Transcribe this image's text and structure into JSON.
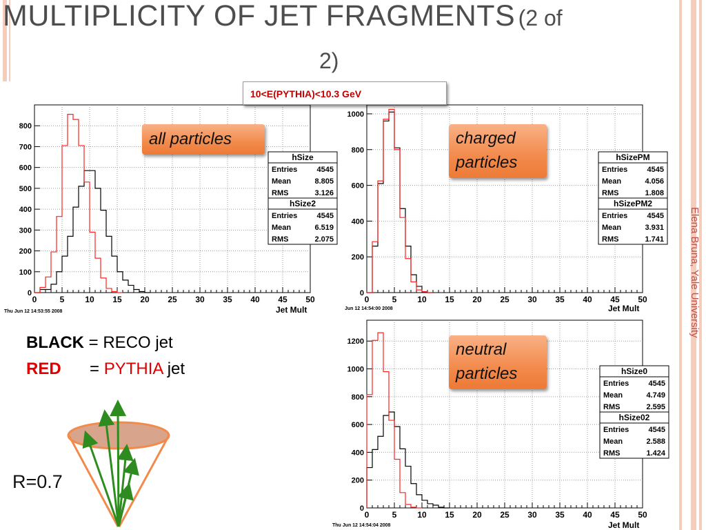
{
  "title": {
    "main": "MULTIPLICITY OF JET FRAGMENTS",
    "part_a": "(2 of",
    "part_b": "2)"
  },
  "side_credit": "Elena Bruna, Yale University",
  "banner": "10<E(PYTHIA)<10.3 GeV",
  "callouts": {
    "all": "all particles",
    "charged_1": "charged",
    "charged_2": "particles",
    "neutral_1": "neutral",
    "neutral_2": "particles"
  },
  "legend": {
    "black_word": "BLACK",
    "black_rest": " = RECO jet",
    "red_word": "RED",
    "red_eq": "= ",
    "red_pythia": "PYTHIA",
    "red_jet": " jet"
  },
  "radius": "R=0.7",
  "colors": {
    "reco": "#000000",
    "pythia": "#ff0000",
    "accent": "#f28a4c",
    "cone_arrows": "#2e8b1f"
  },
  "chart_data": [
    {
      "type": "histogram",
      "id": "all",
      "xlabel": "Jet Mult",
      "timestamp": "Thu Jun 12 14:53:55 2008",
      "xlim": [
        0,
        50
      ],
      "ylim": [
        0,
        900
      ],
      "xticks": [
        "0",
        "5",
        "10",
        "15",
        "20",
        "25",
        "30",
        "35",
        "40",
        "45",
        "50"
      ],
      "yticks": [
        {
          "v": 0,
          "t": "0"
        },
        {
          "v": 100,
          "t": "100"
        },
        {
          "v": 200,
          "t": "200"
        },
        {
          "v": 300,
          "t": "300"
        },
        {
          "v": 400,
          "t": "400"
        },
        {
          "v": 500,
          "t": "500"
        },
        {
          "v": 600,
          "t": "600"
        },
        {
          "v": 700,
          "t": "700"
        },
        {
          "v": 800,
          "t": "800"
        }
      ],
      "grid": true,
      "bin_width": 1,
      "series": [
        {
          "color": "black",
          "values": [
            0,
            15,
            15,
            40,
            100,
            175,
            270,
            410,
            510,
            585,
            585,
            500,
            395,
            270,
            175,
            100,
            60,
            35,
            15,
            5,
            0
          ]
        },
        {
          "color": "red",
          "values": [
            0,
            25,
            75,
            195,
            365,
            705,
            855,
            830,
            705,
            530,
            290,
            165,
            70,
            20,
            5,
            0
          ]
        }
      ],
      "stats": [
        {
          "name": "hSize",
          "rows": [
            [
              "Entries",
              "4545"
            ],
            [
              "Mean",
              "8.805"
            ],
            [
              "RMS",
              "3.126"
            ]
          ]
        },
        {
          "name": "hSize2",
          "rows": [
            [
              "Entries",
              "4545"
            ],
            [
              "Mean",
              "6.519"
            ],
            [
              "RMS",
              "2.075"
            ]
          ]
        }
      ]
    },
    {
      "type": "histogram",
      "id": "charged",
      "xlabel": "Jet Mult",
      "timestamp": "Jun 12 14:54:00 2008",
      "xlim": [
        0,
        50
      ],
      "ylim": [
        0,
        1050
      ],
      "xticks": [
        "0",
        "5",
        "10",
        "15",
        "20",
        "25",
        "30",
        "35",
        "40",
        "45",
        "50"
      ],
      "yticks": [
        {
          "v": 0,
          "t": "0"
        },
        {
          "v": 200,
          "t": "200"
        },
        {
          "v": 400,
          "t": "400"
        },
        {
          "v": 600,
          "t": "600"
        },
        {
          "v": 800,
          "t": "800"
        },
        {
          "v": 1000,
          "t": "1000"
        }
      ],
      "grid": true,
      "bin_width": 1,
      "series": [
        {
          "color": "black",
          "values": [
            0,
            260,
            610,
            960,
            1010,
            810,
            470,
            260,
            100,
            35,
            5,
            0
          ]
        },
        {
          "color": "red",
          "values": [
            0,
            285,
            625,
            970,
            1025,
            800,
            420,
            190,
            60,
            15,
            5,
            0
          ]
        }
      ],
      "stats": [
        {
          "name": "hSizePM",
          "rows": [
            [
              "Entries",
              "4545"
            ],
            [
              "Mean",
              "4.056"
            ],
            [
              "RMS",
              "1.808"
            ]
          ]
        },
        {
          "name": "hSizePM2",
          "rows": [
            [
              "Entries",
              "4545"
            ],
            [
              "Mean",
              "3.931"
            ],
            [
              "RMS",
              "1.741"
            ]
          ]
        }
      ]
    },
    {
      "type": "histogram",
      "id": "neutral",
      "xlabel": "Jet Mult",
      "timestamp": "Thu Jun 12 14:54:04 2008",
      "xlim": [
        0,
        50
      ],
      "ylim": [
        0,
        1350
      ],
      "xticks": [
        "0",
        "5",
        "10",
        "15",
        "20",
        "25",
        "30",
        "35",
        "40",
        "45",
        "50"
      ],
      "yticks": [
        {
          "v": 0,
          "t": "0"
        },
        {
          "v": 200,
          "t": "200"
        },
        {
          "v": 400,
          "t": "400"
        },
        {
          "v": 600,
          "t": "600"
        },
        {
          "v": 800,
          "t": "800"
        },
        {
          "v": 1000,
          "t": "1000"
        },
        {
          "v": 1200,
          "t": "1200"
        }
      ],
      "grid": true,
      "bin_width": 1,
      "series": [
        {
          "color": "black",
          "values": [
            290,
            420,
            515,
            665,
            690,
            585,
            425,
            300,
            175,
            95,
            55,
            30,
            20,
            5,
            0
          ]
        },
        {
          "color": "red",
          "values": [
            815,
            1205,
            1260,
            980,
            630,
            350,
            110,
            25,
            5,
            0
          ]
        }
      ],
      "stats": [
        {
          "name": "hSize0",
          "rows": [
            [
              "Entries",
              "4545"
            ],
            [
              "Mean",
              "4.749"
            ],
            [
              "RMS",
              "2.595"
            ]
          ]
        },
        {
          "name": "hSize02",
          "rows": [
            [
              "Entries",
              "4545"
            ],
            [
              "Mean",
              "2.588"
            ],
            [
              "RMS",
              "1.424"
            ]
          ]
        }
      ]
    }
  ]
}
